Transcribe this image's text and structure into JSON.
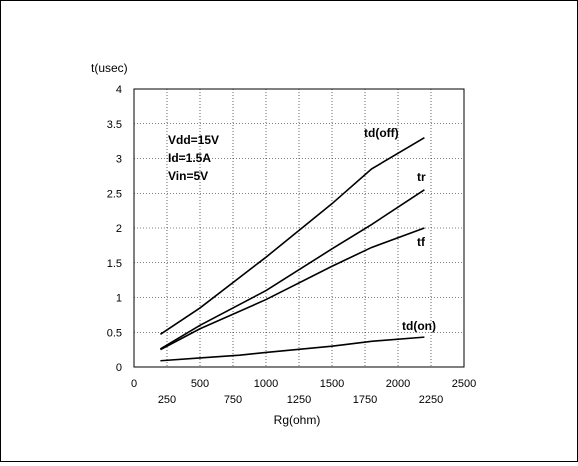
{
  "chart_data": {
    "type": "line",
    "title": "",
    "xlabel": "Rg(ohm)",
    "ylabel": "t(usec)",
    "xlim": [
      0,
      2500
    ],
    "ylim": [
      0,
      4
    ],
    "x_ticks_top_row": [
      "0",
      "500",
      "1000",
      "1500",
      "2000",
      "2500"
    ],
    "x_ticks_bottom_row": [
      "250",
      "750",
      "1250",
      "1750",
      "2250"
    ],
    "y_ticks": [
      "0",
      "0.5",
      "1",
      "1.5",
      "2",
      "2.5",
      "3",
      "3.5",
      "4"
    ],
    "grid": true,
    "annotation_lines": [
      "Vdd=15V",
      "Id=1.5A",
      "Vin=5V"
    ],
    "series": [
      {
        "name": "td(off)",
        "x": [
          200,
          500,
          1000,
          1500,
          1800,
          2200
        ],
        "y": [
          0.47,
          0.85,
          1.58,
          2.35,
          2.85,
          3.3
        ]
      },
      {
        "name": "tr",
        "x": [
          200,
          500,
          1000,
          1500,
          1800,
          2200
        ],
        "y": [
          0.26,
          0.6,
          1.1,
          1.7,
          2.05,
          2.55
        ]
      },
      {
        "name": "tf",
        "x": [
          200,
          500,
          1000,
          1500,
          1800,
          2200
        ],
        "y": [
          0.25,
          0.55,
          0.97,
          1.45,
          1.72,
          2.0
        ]
      },
      {
        "name": "td(on)",
        "x": [
          200,
          500,
          800,
          1000,
          1500,
          1800,
          2200
        ],
        "y": [
          0.09,
          0.13,
          0.17,
          0.21,
          0.3,
          0.37,
          0.43
        ]
      }
    ]
  }
}
